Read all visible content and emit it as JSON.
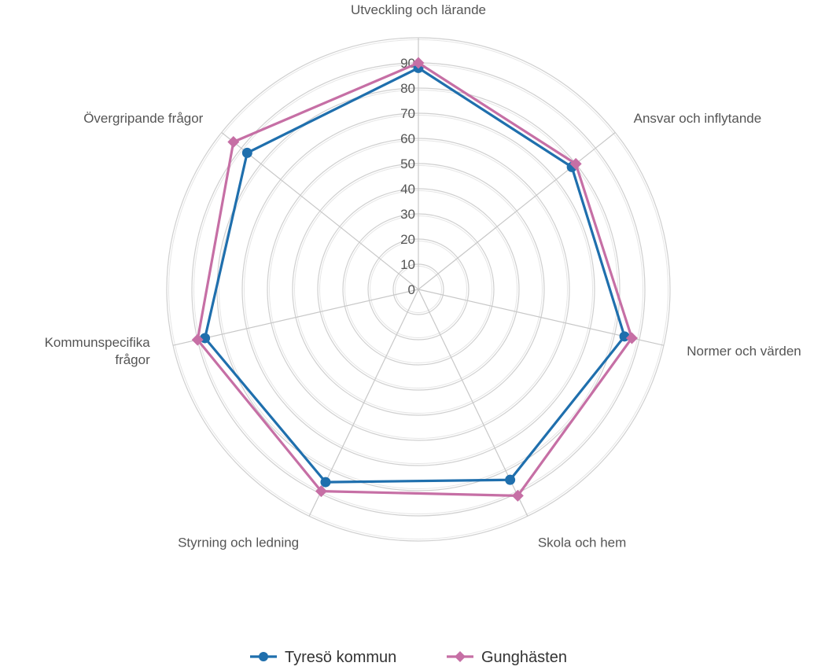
{
  "chart_data": {
    "type": "radar",
    "categories": [
      "Utveckling och lärande",
      "Ansvar och inflytande",
      "Normer och värden",
      "Skola och hem",
      "Styrning och ledning",
      "Kommunspecifika frågor",
      "Övergripande frågor"
    ],
    "series": [
      {
        "name": "Tyresö kommun",
        "color": "#1f6fad",
        "marker": "circle",
        "values": [
          88,
          78,
          84,
          84,
          85,
          87,
          87
        ]
      },
      {
        "name": "Gunghästen",
        "color": "#c66fa5",
        "marker": "diamond",
        "values": [
          90,
          80,
          87,
          91,
          89,
          90,
          94
        ]
      }
    ],
    "r_ticks": [
      0,
      10,
      20,
      30,
      40,
      50,
      60,
      70,
      80,
      90
    ],
    "rlim": [
      0,
      100
    ],
    "grid": true,
    "legend_position": "bottom"
  }
}
